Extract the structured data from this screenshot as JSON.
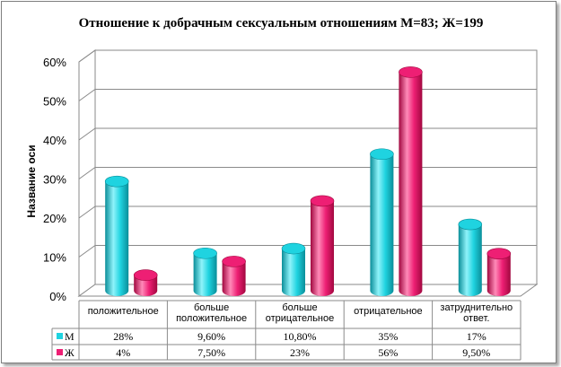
{
  "chart_data": {
    "type": "bar",
    "title": "Отношение  к добрачным сексуальным отношениям  М=83; Ж=199",
    "ylabel": "Название оси",
    "xlabel": "",
    "ylim": [
      0,
      60
    ],
    "yticks": [
      "0%",
      "10%",
      "20%",
      "30%",
      "40%",
      "50%",
      "60%"
    ],
    "grid": true,
    "legend": "in-table-left",
    "categories": [
      [
        "положительное"
      ],
      [
        "больше",
        "положительное"
      ],
      [
        "больше",
        "отрицательное"
      ],
      [
        "отрицательное"
      ],
      [
        "затруднительно",
        "ответ."
      ]
    ],
    "series": [
      {
        "name": "М",
        "values": [
          28,
          9.6,
          10.8,
          35,
          17
        ],
        "labels": [
          "28%",
          "9,60%",
          "10,80%",
          "35%",
          "17%"
        ],
        "color": "#1fd3e0",
        "dark": "#0a8e99",
        "light": "#8ff3fa"
      },
      {
        "name": "Ж",
        "values": [
          4,
          7.5,
          23,
          56,
          9.5
        ],
        "labels": [
          "4%",
          "7,50%",
          "23%",
          "56%",
          "9,50%"
        ],
        "color": "#ee1f74",
        "dark": "#a1083f",
        "light": "#ff8ab8"
      }
    ]
  }
}
